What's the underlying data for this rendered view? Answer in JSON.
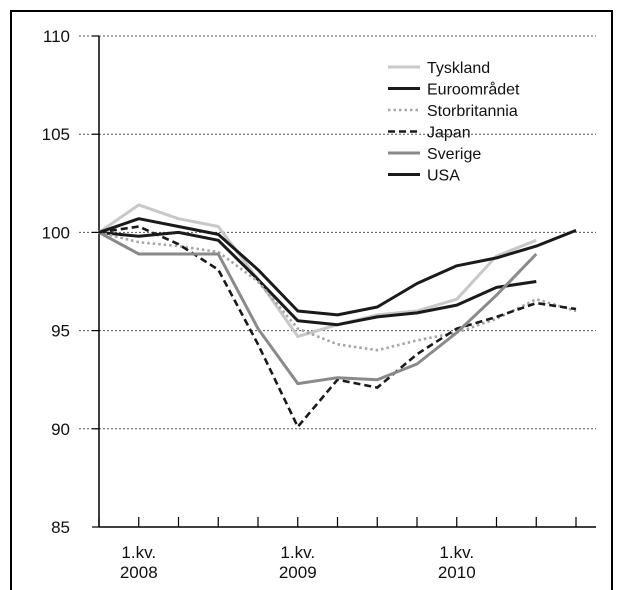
{
  "chart_data": {
    "type": "line",
    "title": "",
    "xlabel": "",
    "ylabel": "",
    "ylim": [
      85,
      110
    ],
    "yticks": [
      85,
      90,
      95,
      100,
      105,
      110
    ],
    "ytick_labels": [
      "85",
      "90",
      "95",
      "100",
      "105",
      "110"
    ],
    "grid": "horizontal dotted",
    "legend_position": "top-right",
    "x": [
      "2007Q4",
      "2008Q1",
      "2008Q2",
      "2008Q3",
      "2008Q4",
      "2009Q1",
      "2009Q2",
      "2009Q3",
      "2009Q4",
      "2010Q1",
      "2010Q2",
      "2010Q3",
      "2010Q4"
    ],
    "xtick_labels": [
      {
        "top": "1.kv.",
        "bottom": "2008",
        "at": "2008Q1"
      },
      {
        "top": "1.kv.",
        "bottom": "2009",
        "at": "2009Q1"
      },
      {
        "top": "1.kv.",
        "bottom": "2010",
        "at": "2010Q1"
      }
    ],
    "series": [
      {
        "name": "Tyskland",
        "color": "#c8c8c8",
        "dash": "solid",
        "values": [
          100,
          101.4,
          100.7,
          100.3,
          97.6,
          94.7,
          95.3,
          95.8,
          96.0,
          96.6,
          98.8,
          99.6,
          null
        ]
      },
      {
        "name": "Euroområdet",
        "color": "#1a1a1a",
        "dash": "solid",
        "values": [
          100,
          99.8,
          100.0,
          99.6,
          97.6,
          95.5,
          95.3,
          95.7,
          95.9,
          96.3,
          97.2,
          97.5,
          null
        ]
      },
      {
        "name": "Storbritannia",
        "color": "#a5a5a5",
        "dash": "dotted",
        "values": [
          100,
          99.5,
          99.3,
          99.0,
          97.5,
          95.1,
          94.3,
          94.0,
          94.5,
          94.9,
          95.6,
          96.6,
          96.0
        ]
      },
      {
        "name": "Japan",
        "color": "#1a1a1a",
        "dash": "dashed",
        "values": [
          100,
          100.3,
          99.4,
          98.1,
          94.3,
          90.1,
          92.5,
          92.1,
          93.8,
          95.1,
          95.7,
          96.4,
          96.1
        ]
      },
      {
        "name": "Sverige",
        "color": "#8a8a8a",
        "dash": "solid",
        "values": [
          100,
          98.9,
          98.9,
          98.9,
          95.1,
          92.3,
          92.6,
          92.5,
          93.3,
          94.9,
          96.8,
          98.9,
          null
        ]
      },
      {
        "name": "USA",
        "color": "#1a1a1a",
        "dash": "solid",
        "values": [
          100,
          100.7,
          100.3,
          99.9,
          98.1,
          96.0,
          95.8,
          96.2,
          97.4,
          98.3,
          98.7,
          99.3,
          100.1
        ]
      }
    ]
  }
}
